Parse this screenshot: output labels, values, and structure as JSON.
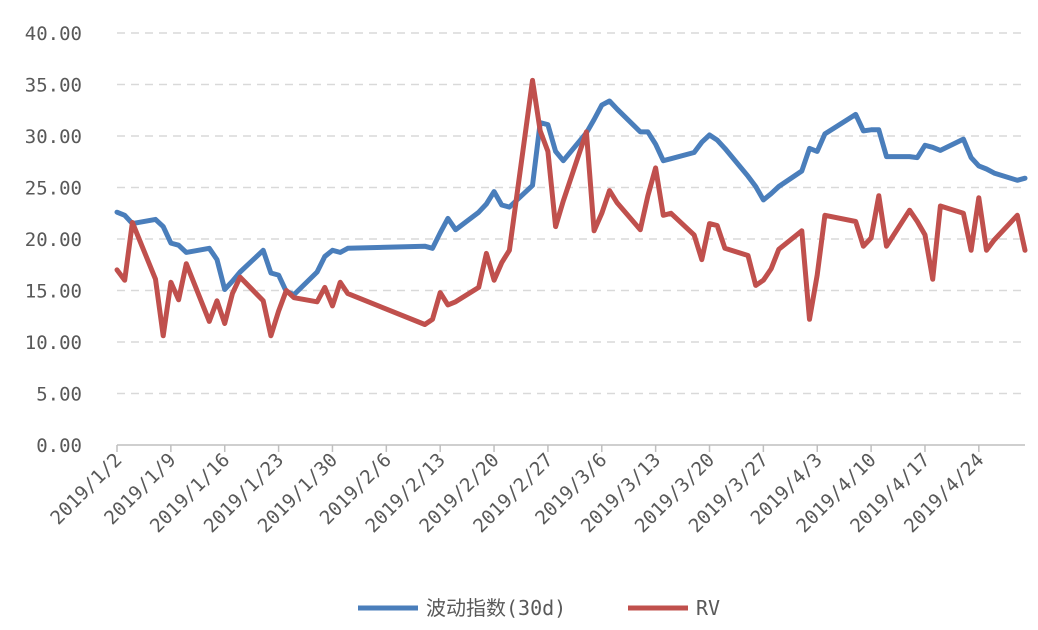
{
  "chart_data": {
    "type": "line",
    "ylim": [
      0,
      40
    ],
    "yticks": [
      "0.00",
      "5.00",
      "10.00",
      "15.00",
      "20.00",
      "25.00",
      "30.00",
      "35.00",
      "40.00"
    ],
    "xtick_labels": [
      "2019/1/2",
      "2019/1/9",
      "2019/1/16",
      "2019/1/23",
      "2019/1/30",
      "2019/2/6",
      "2019/2/13",
      "2019/2/20",
      "2019/2/27",
      "2019/3/6",
      "2019/3/13",
      "2019/3/20",
      "2019/3/27",
      "2019/4/3",
      "2019/4/10",
      "2019/4/17",
      "2019/4/24"
    ],
    "grid": true,
    "legend_position": "bottom",
    "series": [
      {
        "name": "波动指数(30d)",
        "color": "#4a7ebb",
        "points": [
          [
            "2019-01-02",
            22.6
          ],
          [
            "2019-01-03",
            22.3
          ],
          [
            "2019-01-04",
            21.5
          ],
          [
            "2019-01-07",
            21.9
          ],
          [
            "2019-01-08",
            21.2
          ],
          [
            "2019-01-09",
            19.6
          ],
          [
            "2019-01-10",
            19.4
          ],
          [
            "2019-01-11",
            18.7
          ],
          [
            "2019-01-14",
            19.1
          ],
          [
            "2019-01-15",
            18.0
          ],
          [
            "2019-01-16",
            15.1
          ],
          [
            "2019-01-17",
            15.9
          ],
          [
            "2019-01-18",
            16.8
          ],
          [
            "2019-01-21",
            18.9
          ],
          [
            "2019-01-22",
            16.7
          ],
          [
            "2019-01-23",
            16.5
          ],
          [
            "2019-01-24",
            14.9
          ],
          [
            "2019-01-25",
            14.6
          ],
          [
            "2019-01-28",
            16.8
          ],
          [
            "2019-01-29",
            18.3
          ],
          [
            "2019-01-30",
            18.9
          ],
          [
            "2019-01-31",
            18.7
          ],
          [
            "2019-02-01",
            19.1
          ],
          [
            "2019-02-11",
            19.3
          ],
          [
            "2019-02-12",
            19.1
          ],
          [
            "2019-02-13",
            20.6
          ],
          [
            "2019-02-14",
            22.0
          ],
          [
            "2019-02-15",
            20.9
          ],
          [
            "2019-02-18",
            22.6
          ],
          [
            "2019-02-19",
            23.4
          ],
          [
            "2019-02-20",
            24.6
          ],
          [
            "2019-02-21",
            23.3
          ],
          [
            "2019-02-22",
            23.1
          ],
          [
            "2019-02-25",
            25.2
          ],
          [
            "2019-02-26",
            31.3
          ],
          [
            "2019-02-27",
            31.1
          ],
          [
            "2019-02-28",
            28.5
          ],
          [
            "2019-03-01",
            27.6
          ],
          [
            "2019-03-04",
            30.3
          ],
          [
            "2019-03-05",
            31.6
          ],
          [
            "2019-03-06",
            33.0
          ],
          [
            "2019-03-07",
            33.4
          ],
          [
            "2019-03-08",
            32.6
          ],
          [
            "2019-03-11",
            30.4
          ],
          [
            "2019-03-12",
            30.4
          ],
          [
            "2019-03-13",
            29.2
          ],
          [
            "2019-03-14",
            27.6
          ],
          [
            "2019-03-15",
            27.8
          ],
          [
            "2019-03-18",
            28.4
          ],
          [
            "2019-03-19",
            29.4
          ],
          [
            "2019-03-20",
            30.1
          ],
          [
            "2019-03-21",
            29.6
          ],
          [
            "2019-03-22",
            28.8
          ],
          [
            "2019-03-25",
            26.1
          ],
          [
            "2019-03-26",
            25.1
          ],
          [
            "2019-03-27",
            23.8
          ],
          [
            "2019-03-28",
            24.4
          ],
          [
            "2019-03-29",
            25.1
          ],
          [
            "2019-04-01",
            26.6
          ],
          [
            "2019-04-02",
            28.8
          ],
          [
            "2019-04-03",
            28.5
          ],
          [
            "2019-04-04",
            30.2
          ],
          [
            "2019-04-08",
            32.1
          ],
          [
            "2019-04-09",
            30.5
          ],
          [
            "2019-04-10",
            30.6
          ],
          [
            "2019-04-11",
            30.6
          ],
          [
            "2019-04-12",
            28.0
          ],
          [
            "2019-04-15",
            28.0
          ],
          [
            "2019-04-16",
            27.9
          ],
          [
            "2019-04-17",
            29.1
          ],
          [
            "2019-04-18",
            28.9
          ],
          [
            "2019-04-19",
            28.6
          ],
          [
            "2019-04-22",
            29.7
          ],
          [
            "2019-04-23",
            27.9
          ],
          [
            "2019-04-24",
            27.1
          ],
          [
            "2019-04-25",
            26.8
          ],
          [
            "2019-04-26",
            26.4
          ],
          [
            "2019-04-29",
            25.7
          ],
          [
            "2019-04-30",
            25.9
          ]
        ]
      },
      {
        "name": "RV",
        "color": "#c0504d",
        "points": [
          [
            "2019-01-02",
            17.0
          ],
          [
            "2019-01-03",
            16.0
          ],
          [
            "2019-01-04",
            21.6
          ],
          [
            "2019-01-07",
            16.1
          ],
          [
            "2019-01-08",
            10.6
          ],
          [
            "2019-01-09",
            15.8
          ],
          [
            "2019-01-10",
            14.1
          ],
          [
            "2019-01-11",
            17.6
          ],
          [
            "2019-01-14",
            12.0
          ],
          [
            "2019-01-15",
            14.0
          ],
          [
            "2019-01-16",
            11.8
          ],
          [
            "2019-01-17",
            14.7
          ],
          [
            "2019-01-18",
            16.3
          ],
          [
            "2019-01-21",
            14.0
          ],
          [
            "2019-01-22",
            10.6
          ],
          [
            "2019-01-23",
            13.0
          ],
          [
            "2019-01-24",
            15.0
          ],
          [
            "2019-01-25",
            14.3
          ],
          [
            "2019-01-28",
            13.9
          ],
          [
            "2019-01-29",
            15.3
          ],
          [
            "2019-01-30",
            13.5
          ],
          [
            "2019-01-31",
            15.8
          ],
          [
            "2019-02-01",
            14.7
          ],
          [
            "2019-02-11",
            11.7
          ],
          [
            "2019-02-12",
            12.2
          ],
          [
            "2019-02-13",
            14.8
          ],
          [
            "2019-02-14",
            13.6
          ],
          [
            "2019-02-15",
            13.9
          ],
          [
            "2019-02-18",
            15.3
          ],
          [
            "2019-02-19",
            18.6
          ],
          [
            "2019-02-20",
            16.0
          ],
          [
            "2019-02-21",
            17.7
          ],
          [
            "2019-02-22",
            18.9
          ],
          [
            "2019-02-25",
            35.4
          ],
          [
            "2019-02-26",
            30.5
          ],
          [
            "2019-02-27",
            28.5
          ],
          [
            "2019-02-28",
            21.2
          ],
          [
            "2019-03-01",
            23.7
          ],
          [
            "2019-03-04",
            30.4
          ],
          [
            "2019-03-05",
            20.8
          ],
          [
            "2019-03-06",
            22.5
          ],
          [
            "2019-03-07",
            24.7
          ],
          [
            "2019-03-08",
            23.5
          ],
          [
            "2019-03-11",
            20.9
          ],
          [
            "2019-03-12",
            24.2
          ],
          [
            "2019-03-13",
            26.9
          ],
          [
            "2019-03-14",
            22.3
          ],
          [
            "2019-03-15",
            22.5
          ],
          [
            "2019-03-18",
            20.4
          ],
          [
            "2019-03-19",
            18.0
          ],
          [
            "2019-03-20",
            21.5
          ],
          [
            "2019-03-21",
            21.3
          ],
          [
            "2019-03-22",
            19.1
          ],
          [
            "2019-03-25",
            18.4
          ],
          [
            "2019-03-26",
            15.5
          ],
          [
            "2019-03-27",
            16.0
          ],
          [
            "2019-03-28",
            17.1
          ],
          [
            "2019-03-29",
            19.0
          ],
          [
            "2019-04-01",
            20.8
          ],
          [
            "2019-04-02",
            12.2
          ],
          [
            "2019-04-03",
            16.5
          ],
          [
            "2019-04-04",
            22.3
          ],
          [
            "2019-04-08",
            21.7
          ],
          [
            "2019-04-09",
            19.3
          ],
          [
            "2019-04-10",
            20.1
          ],
          [
            "2019-04-11",
            24.2
          ],
          [
            "2019-04-12",
            19.3
          ],
          [
            "2019-04-15",
            22.8
          ],
          [
            "2019-04-16",
            21.7
          ],
          [
            "2019-04-17",
            20.4
          ],
          [
            "2019-04-18",
            16.1
          ],
          [
            "2019-04-19",
            23.2
          ],
          [
            "2019-04-22",
            22.5
          ],
          [
            "2019-04-23",
            18.9
          ],
          [
            "2019-04-24",
            24.0
          ],
          [
            "2019-04-25",
            18.9
          ],
          [
            "2019-04-26",
            19.9
          ],
          [
            "2019-04-29",
            22.3
          ],
          [
            "2019-04-30",
            18.9
          ]
        ]
      }
    ]
  }
}
